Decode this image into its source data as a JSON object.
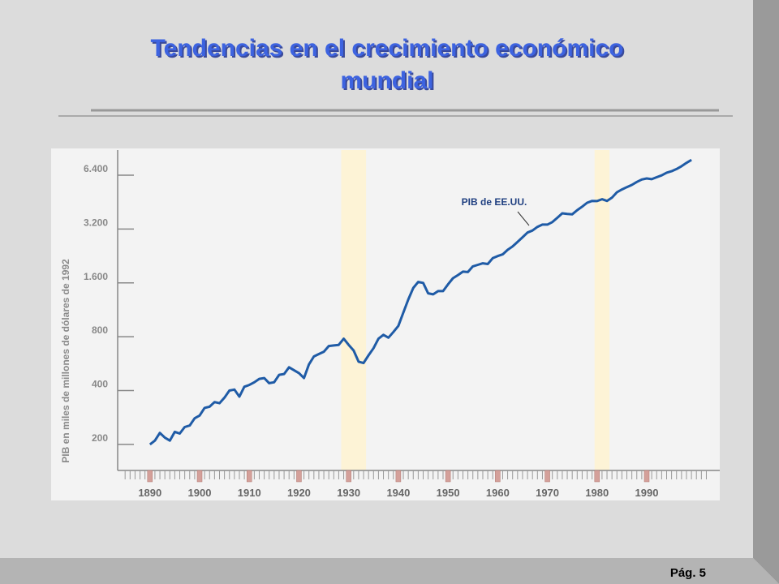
{
  "chart_data": {
    "type": "line",
    "title": "Tendencias en el crecimiento económico mundial",
    "y_label": "PIB en miles de millones de dólares de 1992",
    "page_label": "Pág. 5",
    "x": [
      1890,
      1891,
      1892,
      1893,
      1894,
      1895,
      1896,
      1897,
      1898,
      1899,
      1900,
      1901,
      1902,
      1903,
      1904,
      1905,
      1906,
      1907,
      1908,
      1909,
      1910,
      1911,
      1912,
      1913,
      1914,
      1915,
      1916,
      1917,
      1918,
      1919,
      1920,
      1921,
      1922,
      1923,
      1924,
      1925,
      1926,
      1927,
      1928,
      1929,
      1930,
      1931,
      1932,
      1933,
      1934,
      1935,
      1936,
      1937,
      1938,
      1939,
      1940,
      1941,
      1942,
      1943,
      1944,
      1945,
      1946,
      1947,
      1948,
      1949,
      1950,
      1951,
      1952,
      1953,
      1954,
      1955,
      1956,
      1957,
      1958,
      1959,
      1960,
      1961,
      1962,
      1963,
      1964,
      1965,
      1966,
      1967,
      1968,
      1969,
      1970,
      1971,
      1972,
      1973,
      1974,
      1975,
      1976,
      1977,
      1978,
      1979,
      1980,
      1981,
      1982,
      1983,
      1984,
      1985,
      1986,
      1987,
      1988,
      1989,
      1990,
      1991,
      1992,
      1993,
      1994,
      1995,
      1996,
      1997,
      1998,
      1999
    ],
    "series": [
      {
        "name": "PIB de EE.UU.",
        "color": "#1f5ba6",
        "values": [
          200,
          210,
          232,
          218,
          210,
          235,
          230,
          250,
          255,
          280,
          290,
          320,
          325,
          345,
          340,
          365,
          400,
          405,
          370,
          420,
          430,
          445,
          465,
          470,
          440,
          445,
          490,
          495,
          540,
          520,
          500,
          470,
          560,
          620,
          640,
          660,
          710,
          715,
          720,
          780,
          720,
          670,
          580,
          570,
          630,
          690,
          780,
          820,
          790,
          850,
          920,
          1090,
          1290,
          1500,
          1620,
          1600,
          1400,
          1380,
          1440,
          1440,
          1570,
          1700,
          1770,
          1850,
          1840,
          1980,
          2020,
          2060,
          2040,
          2200,
          2260,
          2310,
          2450,
          2560,
          2710,
          2880,
          3060,
          3140,
          3290,
          3390,
          3390,
          3500,
          3700,
          3920,
          3890,
          3870,
          4080,
          4270,
          4490,
          4600,
          4590,
          4700,
          4600,
          4800,
          5140,
          5330,
          5490,
          5650,
          5870,
          6060,
          6140,
          6080,
          6240,
          6390,
          6610,
          6740,
          6930,
          7190,
          7500,
          7800
        ]
      }
    ],
    "xlim": [
      1883.5,
      2004.7
    ],
    "xticks": [
      1890,
      1900,
      1910,
      1920,
      1930,
      1940,
      1950,
      1960,
      1970,
      1980,
      1990
    ],
    "xticks_minor": [
      1885,
      1886,
      1887,
      1888,
      1889,
      1891,
      1892,
      1893,
      1894,
      1895,
      1896,
      1897,
      1898,
      1899,
      1901,
      1902,
      1903,
      1904,
      1905,
      1906,
      1907,
      1908,
      1909,
      1911,
      1912,
      1913,
      1914,
      1915,
      1916,
      1917,
      1918,
      1919,
      1921,
      1922,
      1923,
      1924,
      1925,
      1926,
      1927,
      1928,
      1929,
      1931,
      1932,
      1933,
      1934,
      1935,
      1936,
      1937,
      1938,
      1939,
      1941,
      1942,
      1943,
      1944,
      1945,
      1946,
      1947,
      1948,
      1949,
      1951,
      1952,
      1953,
      1954,
      1955,
      1956,
      1957,
      1958,
      1959,
      1961,
      1962,
      1963,
      1964,
      1965,
      1966,
      1967,
      1968,
      1969,
      1971,
      1972,
      1973,
      1974,
      1975,
      1976,
      1977,
      1978,
      1979,
      1981,
      1982,
      1983,
      1984,
      1985,
      1986,
      1987,
      1988,
      1989,
      1991,
      1992,
      1993,
      1994,
      1995,
      1996,
      1997,
      1998,
      1999,
      2000,
      2001,
      2002
    ],
    "ylim": [
      143,
      8850
    ],
    "log_base": 2,
    "yticks": [
      200,
      400,
      800,
      {
        "value": 1600,
        "label": "1.600"
      },
      {
        "value": 3200,
        "label": "3.200"
      },
      {
        "value": 6400,
        "label": "6.400"
      }
    ],
    "shaded_ranges": [
      [
        1928.5,
        1933.5
      ],
      [
        1979.5,
        1982.5
      ]
    ],
    "shade_color": "#fdf3d6"
  }
}
